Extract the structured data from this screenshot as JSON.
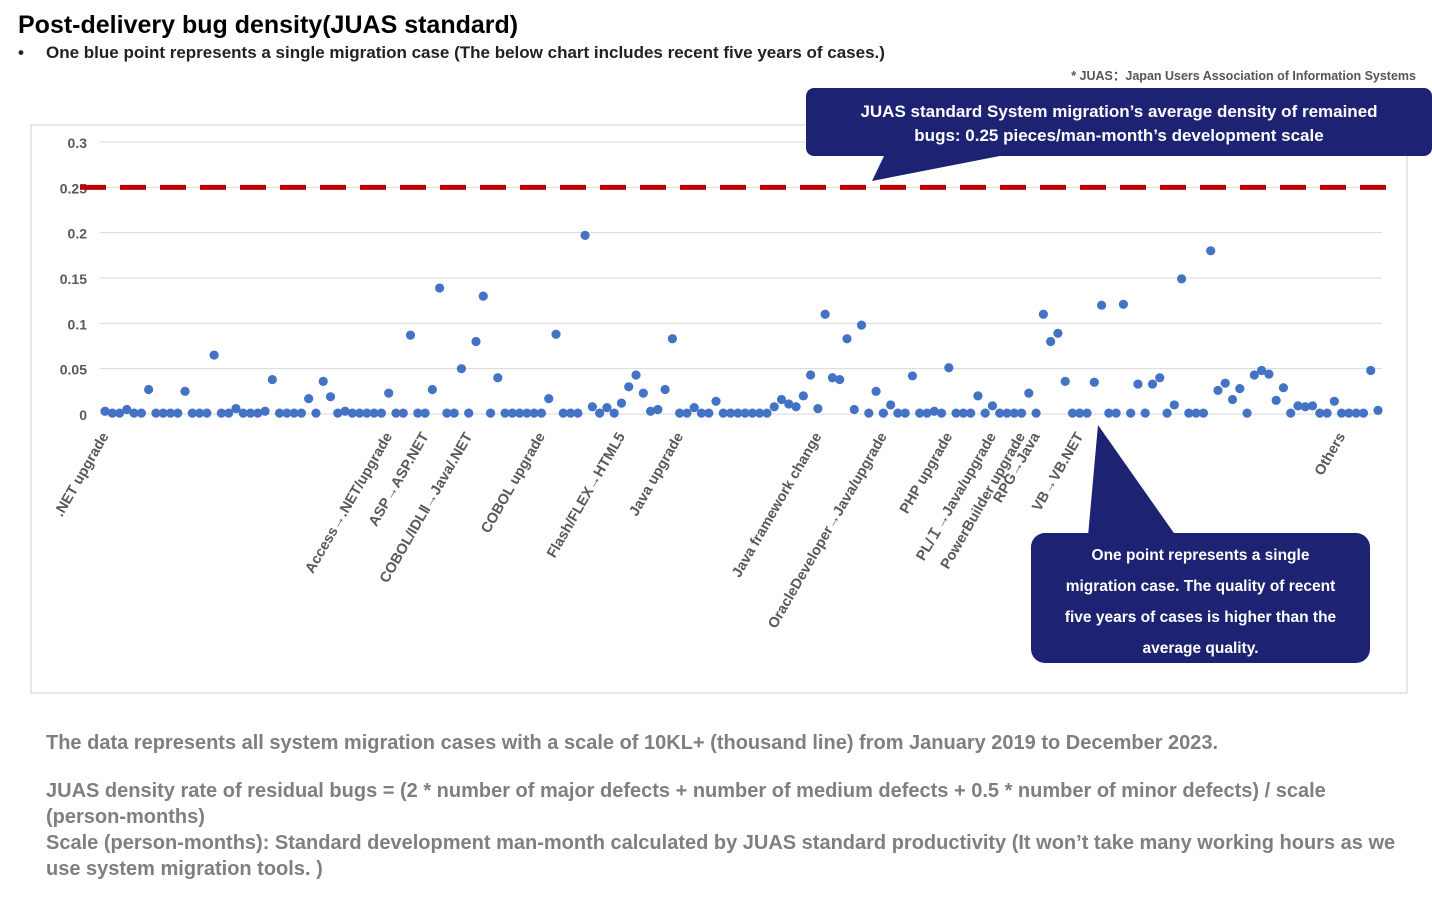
{
  "header": {
    "title": "Post-delivery bug density(JUAS standard)",
    "bullet": "•",
    "subtitle": "One blue point represents a single migration case (The below chart includes recent five years of cases.)",
    "footnote": "* JUAS：Japan Users Association of Information Systems"
  },
  "callouts": {
    "standard": {
      "line1": "JUAS standard  System migration’s average density of remained",
      "line2": "bugs: 0.25 pieces/man-month’s development scale"
    },
    "point": {
      "line1": "One point represents a single",
      "line2": "migration case. The quality of recent",
      "line3": "five years of cases is higher than the",
      "line4": "average quality."
    }
  },
  "notes": {
    "p1": "The data represents all system migration cases with a scale of 10KL+ (thousand line) from January 2019 to December 2023.",
    "p2": "JUAS density rate of residual bugs = (2 * number of major defects + number of medium defects + 0.5 * number of minor defects) / scale (person-months)",
    "p3": "Scale (person-months): Standard development man-month calculated by JUAS standard productivity (It won’t take many working hours as we use system migration tools. )"
  },
  "colors": {
    "point": "#4472c4",
    "reference_line": "#c00000",
    "callout_bg": "#1d2372",
    "grid": "#d9d9d9",
    "axis_text": "#595959"
  },
  "chart_data": {
    "type": "scatter",
    "ylim": [
      0,
      0.3
    ],
    "yticks": [
      0,
      0.05,
      0.1,
      0.15,
      0.2,
      0.25,
      0.3
    ],
    "ytick_labels": [
      "0",
      "0.05",
      "0.1",
      "0.15",
      "0.2",
      "0.25",
      "0.3"
    ],
    "grid": true,
    "reference_line": {
      "y": 0.25,
      "style": "dashed"
    },
    "series": [
      {
        "values": [
          0.003,
          0.001,
          0.001,
          0.005,
          0.001,
          0.001,
          0.027,
          0.001,
          0.001,
          0.001,
          0.001,
          0.025,
          0.001,
          0.001,
          0.001,
          0.065,
          0.001,
          0.001,
          0.006,
          0.001,
          0.001,
          0.001,
          0.003,
          0.038,
          0.001,
          0.001,
          0.001,
          0.001,
          0.017,
          0.001,
          0.036,
          0.019,
          0.001,
          0.003,
          0.001,
          0.001,
          0.001,
          0.001,
          0.001,
          0.023,
          0.001,
          0.001,
          0.087,
          0.001,
          0.001,
          0.027,
          0.139,
          0.001,
          0.001,
          0.05,
          0.001,
          0.08,
          0.13,
          0.001,
          0.04,
          0.001,
          0.001,
          0.001,
          0.001,
          0.001,
          0.001,
          0.017,
          0.088,
          0.001,
          0.001,
          0.001,
          0.197,
          0.008,
          0.001,
          0.007,
          0.001,
          0.012,
          0.03,
          0.043,
          0.023,
          0.003,
          0.005,
          0.027,
          0.083,
          0.001,
          0.001,
          0.007,
          0.001,
          0.001,
          0.014,
          0.001,
          0.001,
          0.001,
          0.001,
          0.001,
          0.001,
          0.001,
          0.008,
          0.016,
          0.011,
          0.008,
          0.02,
          0.043,
          0.006,
          0.11,
          0.04,
          0.038,
          0.083,
          0.005,
          0.098,
          0.001,
          0.025,
          0.001,
          0.01,
          0.001,
          0.001,
          0.042,
          0.001,
          0.001,
          0.003,
          0.001,
          0.051,
          0.001,
          0.001,
          0.001,
          0.02,
          0.001,
          0.009,
          0.001,
          0.001,
          0.001,
          0.001,
          0.023,
          0.001,
          0.11,
          0.08,
          0.089,
          0.036,
          0.001,
          0.001,
          0.001,
          0.035,
          0.12,
          0.001,
          0.001,
          0.121,
          0.001,
          0.033,
          0.001,
          0.033,
          0.04,
          0.001,
          0.01,
          0.149,
          0.001,
          0.001,
          0.001,
          0.18,
          0.026,
          0.034,
          0.016,
          0.028,
          0.001,
          0.043,
          0.048,
          0.044,
          0.015,
          0.029,
          0.001,
          0.009,
          0.008,
          0.009,
          0.001,
          0.001,
          0.014,
          0.001,
          0.001,
          0.001,
          0.001,
          0.048,
          0.004
        ]
      }
    ],
    "category_labels": [
      {
        "label": ".NET upgrade",
        "index": 0
      },
      {
        "label": "Access→.NET/upgrade",
        "index": 39
      },
      {
        "label": "ASP→ASP.NET",
        "index": 44
      },
      {
        "label": "COBOL/IDLⅡ→Java/.NET",
        "index": 50
      },
      {
        "label": "COBOL upgrade",
        "index": 60
      },
      {
        "label": "Flash/FLEX→HTML5",
        "index": 71
      },
      {
        "label": "Java upgrade",
        "index": 79
      },
      {
        "label": "Java framework change",
        "index": 98
      },
      {
        "label": "OracleDeveloper→Java/upgrade",
        "index": 107
      },
      {
        "label": "PHP upgrade",
        "index": 116
      },
      {
        "label": "PL/Ｉ→Java/upgrade",
        "index": 122
      },
      {
        "label": "PowerBuilder upgrade",
        "index": 126
      },
      {
        "label": "RPG→Java",
        "index": 128
      },
      {
        "label": "VB→VB.NET",
        "index": 134
      },
      {
        "label": "Others",
        "index": 170
      }
    ]
  }
}
